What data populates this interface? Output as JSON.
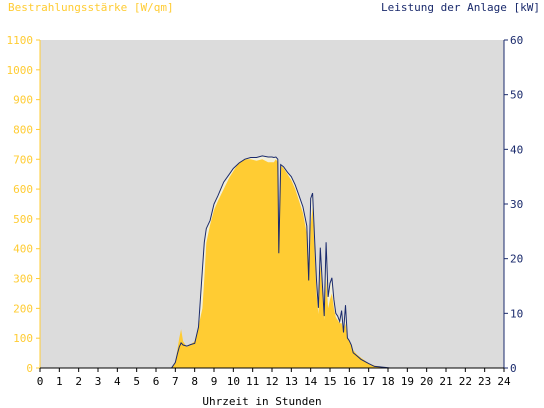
{
  "chart_data": {
    "type": "area",
    "left_axis_label": "Bestrahlungsstärke [W/qm]",
    "right_axis_label": "Leistung der Anlage [kW]",
    "xlabel": "Uhrzeit in Stunden",
    "xlim": [
      0,
      24
    ],
    "xticks": [
      "0",
      "1",
      "2",
      "3",
      "4",
      "5",
      "6",
      "7",
      "8",
      "9",
      "10",
      "11",
      "12",
      "13",
      "14",
      "15",
      "16",
      "17",
      "18",
      "19",
      "20",
      "21",
      "22",
      "23",
      "24"
    ],
    "y_left": {
      "range": [
        0,
        1100
      ],
      "ticks": [
        "0",
        "100",
        "200",
        "300",
        "400",
        "500",
        "600",
        "700",
        "800",
        "900",
        "1000",
        "1100"
      ]
    },
    "y_right": {
      "range": [
        0,
        60
      ],
      "ticks": [
        "0",
        "10",
        "20",
        "30",
        "40",
        "50",
        "60"
      ]
    },
    "grid": false,
    "colors": {
      "irradiance": "#ffcc33",
      "power": "#1a2a6c",
      "plot_bg": "#dcdcdc",
      "light_band": "#f2f0dc"
    },
    "series": [
      {
        "name": "Bestrahlungsstärke [W/qm]",
        "axis": "left",
        "x": [
          0,
          6.8,
          7.0,
          7.1,
          7.2,
          7.3,
          7.4,
          7.6,
          7.8,
          8.0,
          8.2,
          8.4,
          8.5,
          8.6,
          8.8,
          9.0,
          9.2,
          9.5,
          9.8,
          10.0,
          10.3,
          10.6,
          10.9,
          11.2,
          11.5,
          11.8,
          12.0,
          12.1,
          12.2,
          12.3,
          12.35,
          12.45,
          12.6,
          12.8,
          13.0,
          13.2,
          13.4,
          13.6,
          13.8,
          13.9,
          14.0,
          14.1,
          14.2,
          14.3,
          14.4,
          14.5,
          14.6,
          14.7,
          14.8,
          14.9,
          15.0,
          15.1,
          15.2,
          15.3,
          15.4,
          15.5,
          15.6,
          15.7,
          15.8,
          15.9,
          16.0,
          16.1,
          16.2,
          16.4,
          16.6,
          16.8,
          17.0,
          17.3,
          17.6,
          17.9,
          18.1,
          18.3,
          18.5,
          24
        ],
        "values": [
          0,
          0,
          20,
          60,
          100,
          130,
          90,
          70,
          80,
          90,
          140,
          200,
          300,
          420,
          480,
          530,
          560,
          600,
          640,
          660,
          690,
          700,
          700,
          695,
          700,
          690,
          690,
          690,
          700,
          690,
          380,
          680,
          670,
          650,
          630,
          600,
          560,
          520,
          450,
          300,
          480,
          540,
          400,
          250,
          180,
          350,
          260,
          160,
          300,
          200,
          230,
          250,
          200,
          170,
          160,
          150,
          150,
          120,
          150,
          100,
          90,
          80,
          60,
          45,
          35,
          25,
          15,
          8,
          5,
          2,
          0,
          0,
          0,
          0
        ]
      },
      {
        "name": "Leistung der Anlage [kW]",
        "axis": "right",
        "x": [
          0,
          6.8,
          7.0,
          7.1,
          7.2,
          7.3,
          7.4,
          7.6,
          7.8,
          8.0,
          8.2,
          8.4,
          8.5,
          8.6,
          8.8,
          9.0,
          9.2,
          9.5,
          9.8,
          10.0,
          10.3,
          10.6,
          10.9,
          11.2,
          11.5,
          11.8,
          12.0,
          12.1,
          12.2,
          12.3,
          12.35,
          12.45,
          12.6,
          12.8,
          13.0,
          13.2,
          13.4,
          13.6,
          13.8,
          13.9,
          14.0,
          14.1,
          14.2,
          14.3,
          14.4,
          14.5,
          14.6,
          14.7,
          14.8,
          14.9,
          15.0,
          15.1,
          15.2,
          15.3,
          15.4,
          15.5,
          15.6,
          15.7,
          15.8,
          15.9,
          16.0,
          16.1,
          16.2,
          16.4,
          16.6,
          16.8,
          17.0,
          17.3,
          17.6,
          17.9,
          18.1,
          18.3,
          18.5,
          24
        ],
        "values": [
          0,
          0,
          1.0,
          2.5,
          3.8,
          4.6,
          4.2,
          4.0,
          4.3,
          4.5,
          7.5,
          18,
          23,
          25.5,
          27,
          30,
          31.5,
          34,
          35.5,
          36.5,
          37.5,
          38.2,
          38.5,
          38.5,
          38.8,
          38.6,
          38.6,
          38.5,
          38.6,
          38.2,
          21,
          37.2,
          36.8,
          35.8,
          35,
          33.5,
          31.5,
          29.5,
          26,
          16,
          31,
          32,
          24,
          16,
          11,
          22,
          15.5,
          9.5,
          23,
          13,
          15.5,
          16.5,
          12.5,
          10,
          9.5,
          8.5,
          10.5,
          6.5,
          11.5,
          5.5,
          5,
          4.2,
          2.8,
          2.2,
          1.6,
          1.2,
          0.8,
          0.3,
          0.2,
          0.1,
          0,
          0,
          0,
          0
        ]
      }
    ]
  }
}
